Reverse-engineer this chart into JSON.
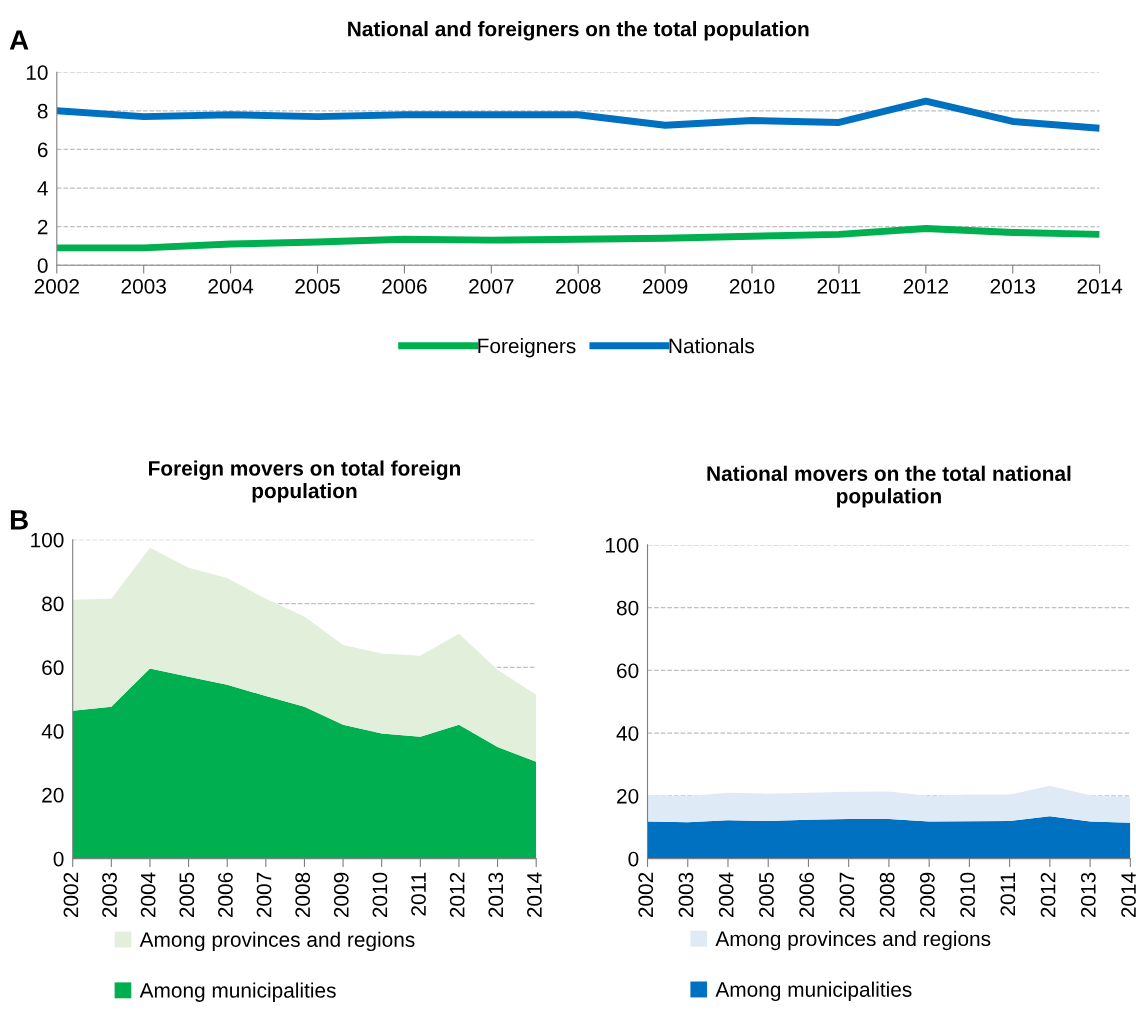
{
  "chart_data": [
    {
      "type": "line",
      "title": "National and foreigners on the total population",
      "annotations": [
        "A"
      ],
      "x": [
        2002,
        2003,
        2004,
        2005,
        2006,
        2007,
        2008,
        2009,
        2010,
        2011,
        2012,
        2013,
        2014
      ],
      "xlim": [
        2002,
        2014
      ],
      "xticks": [
        2002,
        2003,
        2004,
        2005,
        2006,
        2007,
        2008,
        2009,
        2010,
        2011,
        2012,
        2013,
        2014
      ],
      "ylim": [
        0,
        10
      ],
      "yticks": [
        0,
        2,
        4,
        6,
        8,
        10
      ],
      "grid": "y",
      "legend": "bottom",
      "line_style": "solid",
      "marker": "none",
      "series": [
        {
          "name": "Foreigners",
          "color": "#00b050",
          "values": [
            0.9,
            0.9,
            1.1,
            1.2,
            1.35,
            1.3,
            1.35,
            1.4,
            1.5,
            1.6,
            1.9,
            1.7,
            1.6
          ]
        },
        {
          "name": "Nationals",
          "color": "#0070c0",
          "values": [
            8.0,
            7.7,
            7.8,
            7.7,
            7.8,
            7.8,
            7.8,
            7.25,
            7.5,
            7.4,
            8.5,
            7.45,
            7.1
          ]
        }
      ]
    },
    {
      "type": "area",
      "stacked": true,
      "title": "Foreign movers on total foreign\npopulation",
      "annotations": [
        "B"
      ],
      "x": [
        2002,
        2003,
        2004,
        2005,
        2006,
        2007,
        2008,
        2009,
        2010,
        2011,
        2012,
        2013,
        2014
      ],
      "xlim": [
        2002,
        2014
      ],
      "xticks": [
        2002,
        2003,
        2004,
        2005,
        2006,
        2007,
        2008,
        2009,
        2010,
        2011,
        2012,
        2013,
        2014
      ],
      "ylim": [
        0,
        100
      ],
      "yticks": [
        0,
        20,
        40,
        60,
        80,
        100
      ],
      "grid": "y",
      "legend": "bottom",
      "series": [
        {
          "name": "Among municipalities",
          "color": "#00b050",
          "values": [
            46.4,
            47.6,
            59.6,
            57,
            54.5,
            51,
            47.6,
            42,
            39.2,
            38.2,
            42,
            35,
            30.4
          ]
        },
        {
          "name": "Among provinces and regions",
          "color": "#e2efda",
          "values": [
            34.8,
            33.9,
            37.9,
            34.2,
            33.5,
            30.5,
            28.3,
            25,
            25.1,
            25.4,
            28.5,
            24.2,
            21
          ]
        }
      ]
    },
    {
      "type": "area",
      "stacked": true,
      "title": "National movers on the total national\npopulation",
      "x": [
        2002,
        2003,
        2004,
        2005,
        2006,
        2007,
        2008,
        2009,
        2010,
        2011,
        2012,
        2013,
        2014
      ],
      "xlim": [
        2002,
        2014
      ],
      "xticks": [
        2002,
        2003,
        2004,
        2005,
        2006,
        2007,
        2008,
        2009,
        2010,
        2011,
        2012,
        2013,
        2014
      ],
      "ylim": [
        0,
        100
      ],
      "yticks": [
        0,
        20,
        40,
        60,
        80,
        100
      ],
      "grid": "y",
      "legend": "bottom",
      "series": [
        {
          "name": "Among municipalities",
          "color": "#0070c0",
          "values": [
            11.8,
            11.6,
            12.2,
            12,
            12.4,
            12.6,
            12.6,
            11.8,
            11.9,
            12,
            13.5,
            11.8,
            11.4
          ]
        },
        {
          "name": "Among provinces and regions",
          "color": "#deebf7",
          "values": [
            8.5,
            8.4,
            8.8,
            8.7,
            8.6,
            8.7,
            8.8,
            8.2,
            8.5,
            8.4,
            9.7,
            8.4,
            8.2
          ]
        }
      ]
    }
  ]
}
